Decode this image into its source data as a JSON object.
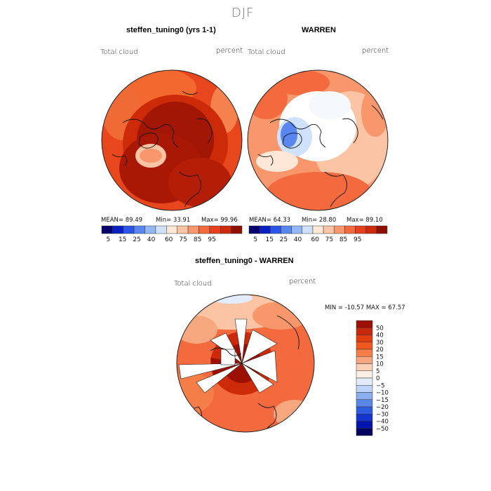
{
  "figure": {
    "title": "DJF"
  },
  "panels": [
    {
      "title": "steffen_tuning0 (yrs 1-1)",
      "variable": "Total cloud",
      "units": "percent",
      "stats": {
        "mean": "MEAN=  89.49",
        "min": "Min=  33.91",
        "max": "Max=  99.96"
      }
    },
    {
      "title": "WARREN",
      "variable": "Total cloud",
      "units": "percent",
      "stats": {
        "mean": "MEAN=  64.33",
        "min": "Min=  28.80",
        "max": "Max=  89.10"
      }
    },
    {
      "title": "steffen_tuning0 - WARREN",
      "variable": "Total cloud",
      "units": "percent",
      "stats": {
        "minmax": "MIN = -10.57  MAX =  67.57"
      }
    }
  ],
  "colorbar_abs": {
    "colors": [
      "#08006e",
      "#0b20c4",
      "#2a55e8",
      "#5a86f0",
      "#93b6f5",
      "#cfe1fb",
      "#fde7d6",
      "#fbc4a4",
      "#f8966c",
      "#f26a3e",
      "#e8401c",
      "#cc2a08",
      "#8f0f00"
    ],
    "tick_labels": [
      "5",
      "15",
      "25",
      "40",
      "60",
      "75",
      "85",
      "95"
    ]
  },
  "colorbar_diff": {
    "colors_top_to_bottom": [
      "#9c1004",
      "#c5280a",
      "#e23c12",
      "#f1581f",
      "#f57d48",
      "#f7a77e",
      "#fad0b8",
      "#fdeee4",
      "#e4ecfb",
      "#bcd2f6",
      "#8bb0ef",
      "#5a86e8",
      "#2f5ce0",
      "#1535cf",
      "#0014b0",
      "#04005e"
    ],
    "tick_labels": [
      "50",
      "40",
      "30",
      "20",
      "15",
      "10",
      "5",
      "0",
      "−5",
      "−10",
      "−15",
      "−20",
      "−30",
      "−40",
      "−50"
    ]
  },
  "chart_data": [
    {
      "type": "heatmap",
      "title": "steffen_tuning0 (yrs 1-1)",
      "projection": "north polar stereographic",
      "variable": "Total cloud",
      "units": "percent",
      "mean": 89.49,
      "min": 33.91,
      "max": 99.96,
      "levels": [
        5,
        15,
        25,
        40,
        60,
        75,
        85,
        95
      ]
    },
    {
      "type": "heatmap",
      "title": "WARREN",
      "projection": "north polar stereographic",
      "variable": "Total cloud",
      "units": "percent",
      "mean": 64.33,
      "min": 28.8,
      "max": 89.1,
      "levels": [
        5,
        15,
        25,
        40,
        60,
        75,
        85,
        95
      ]
    },
    {
      "type": "heatmap",
      "title": "steffen_tuning0 - WARREN",
      "projection": "north polar stereographic",
      "variable": "Total cloud",
      "units": "percent",
      "min": -10.57,
      "max": 67.57,
      "levels": [
        -50,
        -40,
        -30,
        -20,
        -15,
        -10,
        -5,
        0,
        5,
        10,
        15,
        20,
        30,
        40,
        50
      ]
    }
  ]
}
